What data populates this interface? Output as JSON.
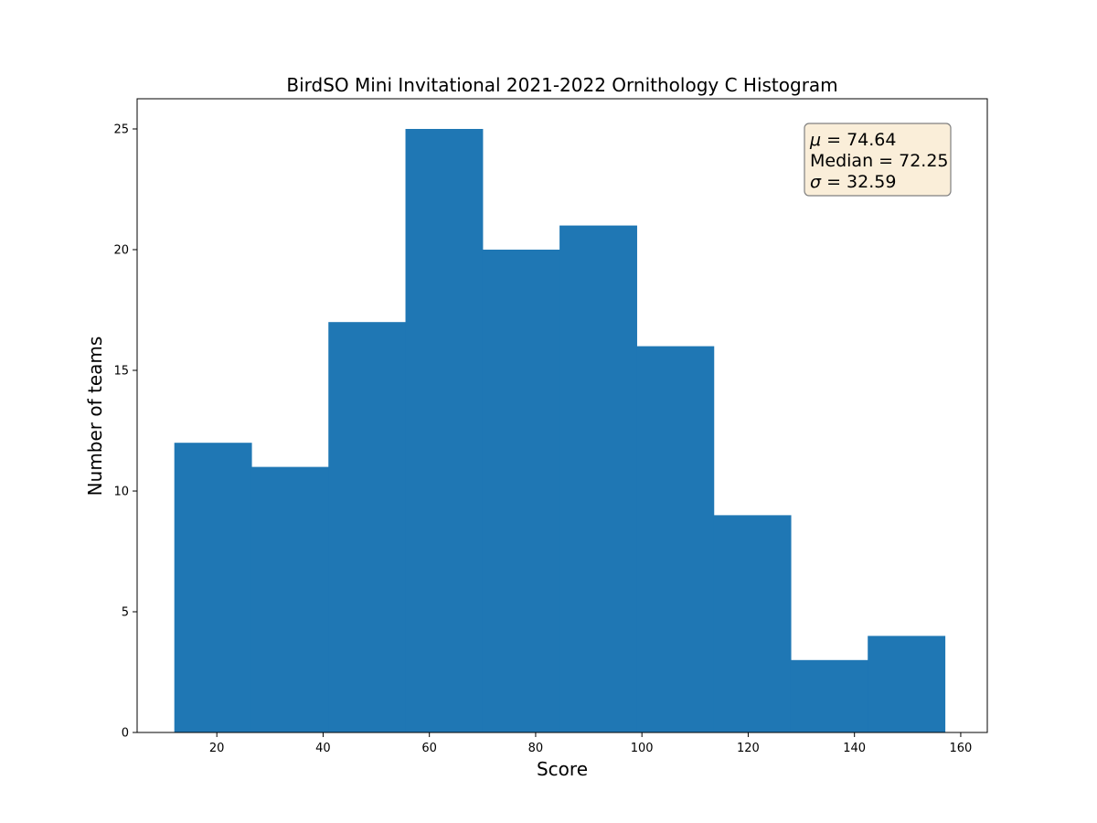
{
  "chart_data": {
    "type": "bar",
    "title": "BirdSO Mini Invitational 2021-2022 Ornithology C Histogram",
    "xlabel": "Score",
    "ylabel": "Number of teams",
    "xlim": [
      5,
      165
    ],
    "ylim": [
      0,
      26.25
    ],
    "xticks": [
      20,
      40,
      60,
      80,
      100,
      120,
      140,
      160
    ],
    "yticks": [
      0,
      5,
      10,
      15,
      20,
      25
    ],
    "bin_edges": [
      12,
      26.5,
      41,
      55.5,
      70,
      84.5,
      99,
      113.5,
      128,
      142.5,
      157
    ],
    "values": [
      12,
      11,
      17,
      25,
      20,
      21,
      16,
      9,
      3,
      4
    ],
    "bar_color": "#1f77b4",
    "grid": false,
    "stats": {
      "mu_symbol": "μ",
      "mu_value": "74.64",
      "median_label": "Median",
      "median_value": "72.25",
      "sigma_symbol": "σ",
      "sigma_value": "32.59",
      "box_color": "#f5deb3",
      "placement": "top-right"
    }
  }
}
